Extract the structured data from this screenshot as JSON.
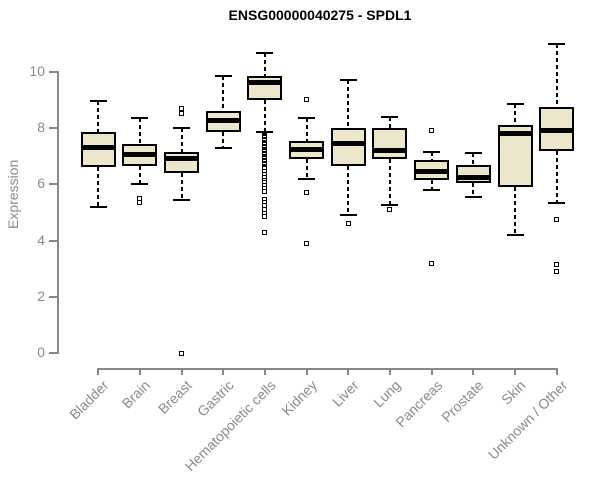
{
  "chart_data": {
    "type": "boxplot",
    "title": "ENSG00000040275 - SPDL1",
    "xlabel": "",
    "ylabel": "Expression",
    "yticks": [
      0,
      2,
      4,
      6,
      8,
      10
    ],
    "ylim": [
      0,
      11.2
    ],
    "grid": false,
    "legend": null,
    "colors": {
      "box_fill": "#ece6ca",
      "box_border": "#000000",
      "axis": "#878787",
      "labels": "#8b8b8b",
      "title": "#000000",
      "background": "#ffffff"
    },
    "categories": [
      "Bladder",
      "Brain",
      "Breast",
      "Gastric",
      "Hematopoietic cells",
      "Kidney",
      "Liver",
      "Lung",
      "Pancreas",
      "Prostate",
      "Skin",
      "Unknown / Other"
    ],
    "boxes": [
      {
        "category": "Bladder",
        "whisker_low": 5.2,
        "q1": 6.6,
        "median": 7.3,
        "q3": 7.85,
        "whisker_high": 8.95,
        "outliers": []
      },
      {
        "category": "Brain",
        "whisker_low": 6.0,
        "q1": 6.65,
        "median": 7.05,
        "q3": 7.45,
        "whisker_high": 8.35,
        "outliers": [
          5.5,
          5.35
        ]
      },
      {
        "category": "Breast",
        "whisker_low": 5.45,
        "q1": 6.4,
        "median": 6.9,
        "q3": 7.15,
        "whisker_high": 8.0,
        "outliers": [
          8.7,
          8.5,
          0
        ]
      },
      {
        "category": "Gastric",
        "whisker_low": 7.3,
        "q1": 7.85,
        "median": 8.25,
        "q3": 8.6,
        "whisker_high": 9.85,
        "outliers": []
      },
      {
        "category": "Hematopoietic cells",
        "whisker_low": 7.85,
        "q1": 9.0,
        "median": 9.6,
        "q3": 9.85,
        "whisker_high": 10.65,
        "outliers": [
          7.75,
          7.7,
          7.65,
          7.6,
          7.55,
          7.5,
          7.45,
          7.4,
          7.35,
          7.3,
          7.25,
          7.2,
          7.15,
          7.1,
          7.05,
          7.0,
          6.95,
          6.9,
          6.85,
          6.8,
          6.75,
          6.7,
          6.65,
          6.6,
          6.55,
          6.45,
          6.35,
          6.25,
          6.15,
          6.05,
          5.95,
          5.85,
          5.75,
          5.45,
          5.35,
          5.25,
          5.1,
          4.95,
          4.85,
          4.3
        ]
      },
      {
        "category": "Kidney",
        "whisker_low": 6.2,
        "q1": 6.9,
        "median": 7.25,
        "q3": 7.55,
        "whisker_high": 8.35,
        "outliers": [
          9.0,
          5.7,
          3.9
        ]
      },
      {
        "category": "Liver",
        "whisker_low": 4.9,
        "q1": 6.65,
        "median": 7.45,
        "q3": 8.0,
        "whisker_high": 9.7,
        "outliers": [
          4.6
        ]
      },
      {
        "category": "Lung",
        "whisker_low": 5.25,
        "q1": 6.9,
        "median": 7.2,
        "q3": 8.0,
        "whisker_high": 8.4,
        "outliers": [
          5.1
        ]
      },
      {
        "category": "Pancreas",
        "whisker_low": 5.8,
        "q1": 6.15,
        "median": 6.45,
        "q3": 6.85,
        "whisker_high": 7.15,
        "outliers": [
          7.9,
          3.2
        ]
      },
      {
        "category": "Prostate",
        "whisker_low": 5.55,
        "q1": 6.05,
        "median": 6.25,
        "q3": 6.7,
        "whisker_high": 7.1,
        "outliers": []
      },
      {
        "category": "Skin",
        "whisker_low": 4.2,
        "q1": 5.9,
        "median": 7.8,
        "q3": 8.1,
        "whisker_high": 8.85,
        "outliers": []
      },
      {
        "category": "Unknown / Other",
        "whisker_low": 5.35,
        "q1": 7.2,
        "median": 7.9,
        "q3": 8.75,
        "whisker_high": 11.0,
        "outliers": [
          4.75,
          3.15,
          2.9
        ]
      }
    ]
  }
}
